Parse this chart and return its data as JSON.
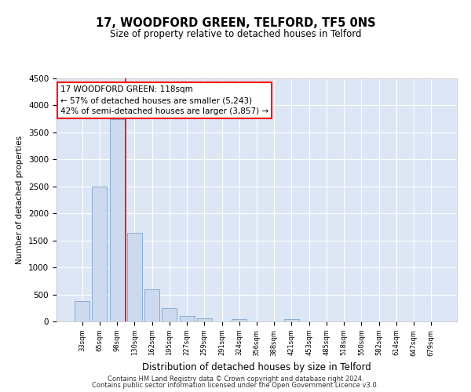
{
  "title": "17, WOODFORD GREEN, TELFORD, TF5 0NS",
  "subtitle": "Size of property relative to detached houses in Telford",
  "xlabel": "Distribution of detached houses by size in Telford",
  "ylabel": "Number of detached properties",
  "bar_labels": [
    "33sqm",
    "65sqm",
    "98sqm",
    "130sqm",
    "162sqm",
    "195sqm",
    "227sqm",
    "259sqm",
    "291sqm",
    "324sqm",
    "356sqm",
    "388sqm",
    "421sqm",
    "453sqm",
    "485sqm",
    "518sqm",
    "550sqm",
    "582sqm",
    "614sqm",
    "647sqm",
    "679sqm"
  ],
  "bar_values": [
    380,
    2500,
    3750,
    1640,
    600,
    240,
    100,
    60,
    0,
    50,
    0,
    0,
    50,
    0,
    0,
    0,
    0,
    0,
    0,
    0,
    0
  ],
  "bar_color": "#ccd9ee",
  "bar_edge_color": "#8aadd4",
  "ylim": [
    0,
    4500
  ],
  "yticks": [
    0,
    500,
    1000,
    1500,
    2000,
    2500,
    3000,
    3500,
    4000,
    4500
  ],
  "annotation_text_line1": "17 WOODFORD GREEN: 118sqm",
  "annotation_text_line2": "← 57% of detached houses are smaller (5,243)",
  "annotation_text_line3": "42% of semi-detached houses are larger (3,857) →",
  "footer_line1": "Contains HM Land Registry data © Crown copyright and database right 2024.",
  "footer_line2": "Contains public sector information licensed under the Open Government Licence v3.0.",
  "bg_color": "#dce6f5",
  "fig_bg_color": "#ffffff",
  "grid_color": "#ffffff",
  "red_line_index": 2.5
}
